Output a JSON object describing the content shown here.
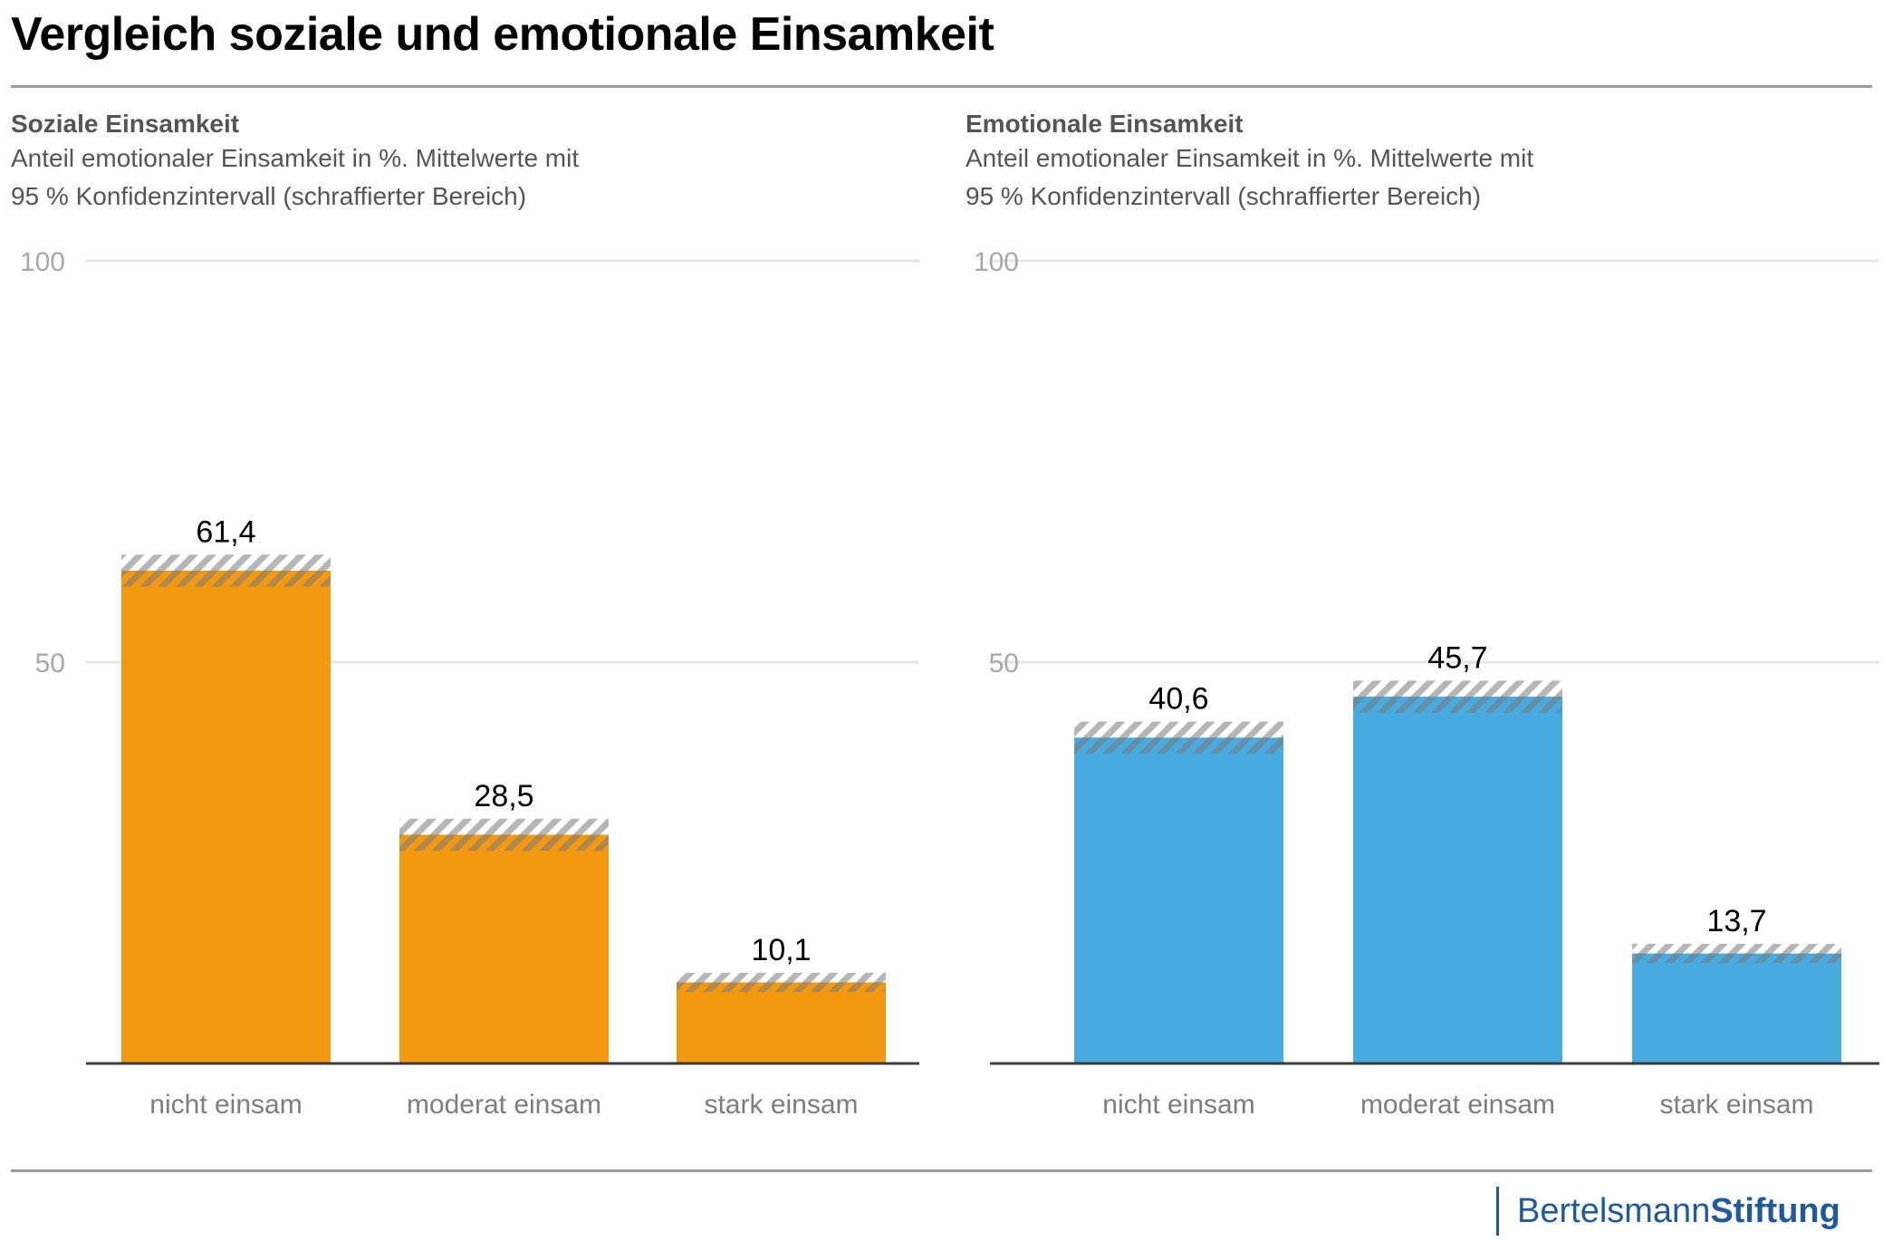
{
  "title": "Vergleich soziale und emotionale Einsamkeit",
  "colors": {
    "social": "#f29811",
    "emotional": "#47abe0",
    "ci_light": "#b5b5b5",
    "brand": "#1f5a9c"
  },
  "panels": [
    {
      "heading": "Soziale Einsamkeit",
      "subtitle_line1": "Anteil emotionaler Einsamkeit in %. Mittelwerte mit",
      "subtitle_line2": "95 % Konfidenzintervall (schraffierter Bereich)"
    },
    {
      "heading": "Emotionale Einsamkeit",
      "subtitle_line1": "Anteil emotionaler Einsamkeit in %. Mittelwerte mit",
      "subtitle_line2": "95 % Konfidenzintervall (schraffierter Bereich)"
    }
  ],
  "chart_data": [
    {
      "type": "bar",
      "title": "Soziale Einsamkeit",
      "subtitle": "Anteil emotionaler Einsamkeit in %. Mittelwerte mit 95 % Konfidenzintervall (schraffierter Bereich)",
      "categories": [
        "nicht einsam",
        "moderat einsam",
        "stark einsam"
      ],
      "values": [
        61.4,
        28.5,
        10.1
      ],
      "value_labels": [
        "61,4",
        "28,5",
        "10,1"
      ],
      "ci": [
        [
          59.4,
          63.4
        ],
        [
          26.5,
          30.5
        ],
        [
          8.9,
          11.3
        ]
      ],
      "ylim": [
        0,
        100
      ],
      "yticks": [
        50,
        100
      ],
      "ytick_labels": [
        "50",
        "100"
      ],
      "grid": true,
      "color": "#f29811"
    },
    {
      "type": "bar",
      "title": "Emotionale Einsamkeit",
      "subtitle": "Anteil emotionaler Einsamkeit in %. Mittelwerte mit 95 % Konfidenzintervall (schraffierter Bereich)",
      "categories": [
        "nicht einsam",
        "moderat einsam",
        "stark einsam"
      ],
      "values": [
        40.6,
        45.7,
        13.7
      ],
      "value_labels": [
        "40,6",
        "45,7",
        "13,7"
      ],
      "ci": [
        [
          38.6,
          42.6
        ],
        [
          43.7,
          47.7
        ],
        [
          12.5,
          14.9
        ]
      ],
      "ylim": [
        0,
        100
      ],
      "yticks": [
        50,
        100
      ],
      "ytick_labels": [
        "50",
        "100"
      ],
      "grid": true,
      "color": "#47abe0"
    }
  ],
  "logo": {
    "part1": "Bertelsmann",
    "part2": "Stiftung"
  }
}
